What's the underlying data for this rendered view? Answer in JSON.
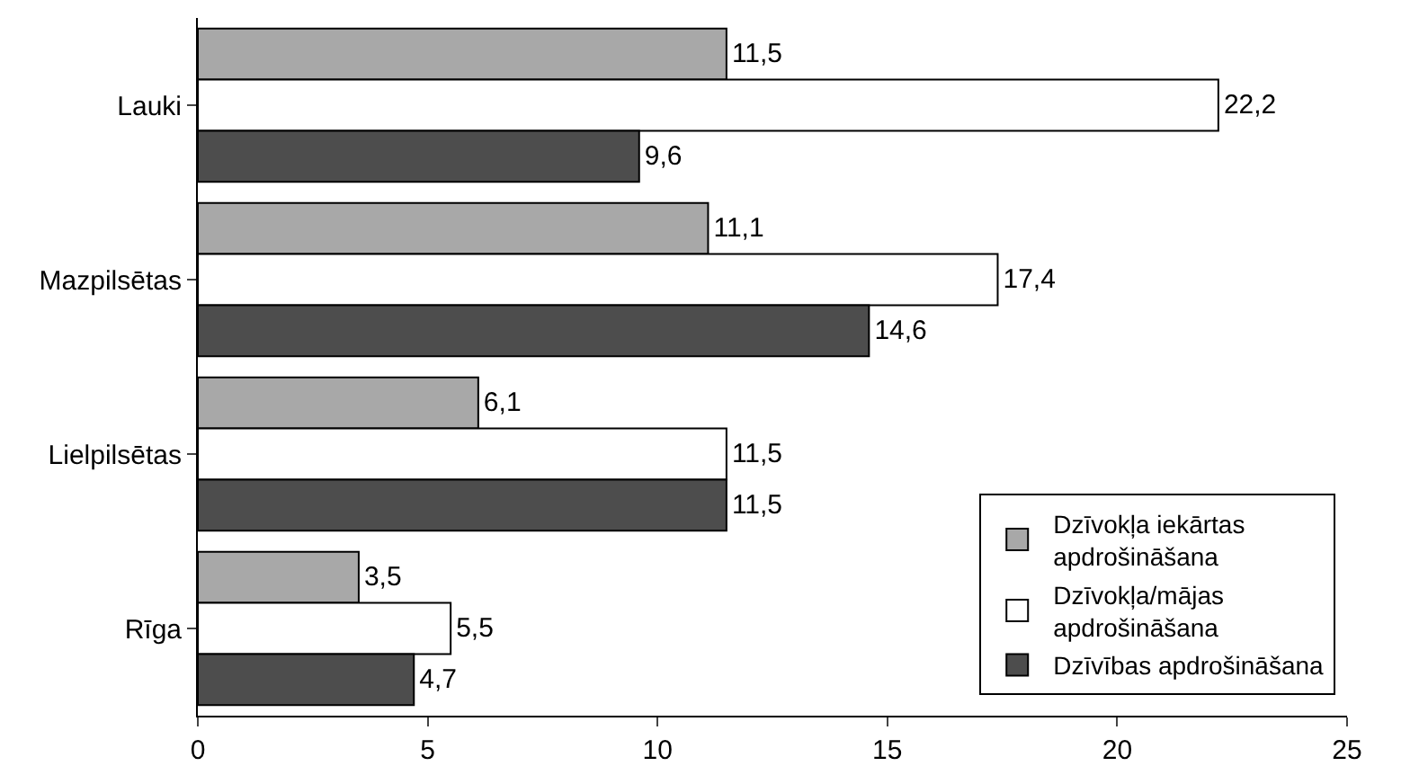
{
  "chart_data": {
    "type": "bar",
    "orientation": "horizontal",
    "categories": [
      "Lauki",
      "Mazpilsētas",
      "Lielpilsētas",
      "Rīga"
    ],
    "series": [
      {
        "name": "Dzīvokļa iekārtas\napdrošināšana",
        "color": "#a8a8a8",
        "values": [
          11.5,
          11.1,
          6.1,
          3.5
        ],
        "value_labels": [
          "11,5",
          "11,1",
          "6,1",
          "3,5"
        ]
      },
      {
        "name": "Dzīvokļa/mājas\napdrošināšana",
        "color": "#ffffff",
        "values": [
          22.2,
          17.4,
          11.5,
          5.5
        ],
        "value_labels": [
          "22,2",
          "17,4",
          "11,5",
          "5,5"
        ]
      },
      {
        "name": "Dzīvības apdrošināšana",
        "color": "#4d4d4d",
        "values": [
          9.6,
          14.6,
          11.5,
          4.7
        ],
        "value_labels": [
          "9,6",
          "14,6",
          "11,5",
          "4,7"
        ]
      }
    ],
    "xlim": [
      0,
      25
    ],
    "xticks": [
      0,
      5,
      10,
      15,
      20,
      25
    ],
    "grid": false,
    "legend": "bottom right"
  }
}
